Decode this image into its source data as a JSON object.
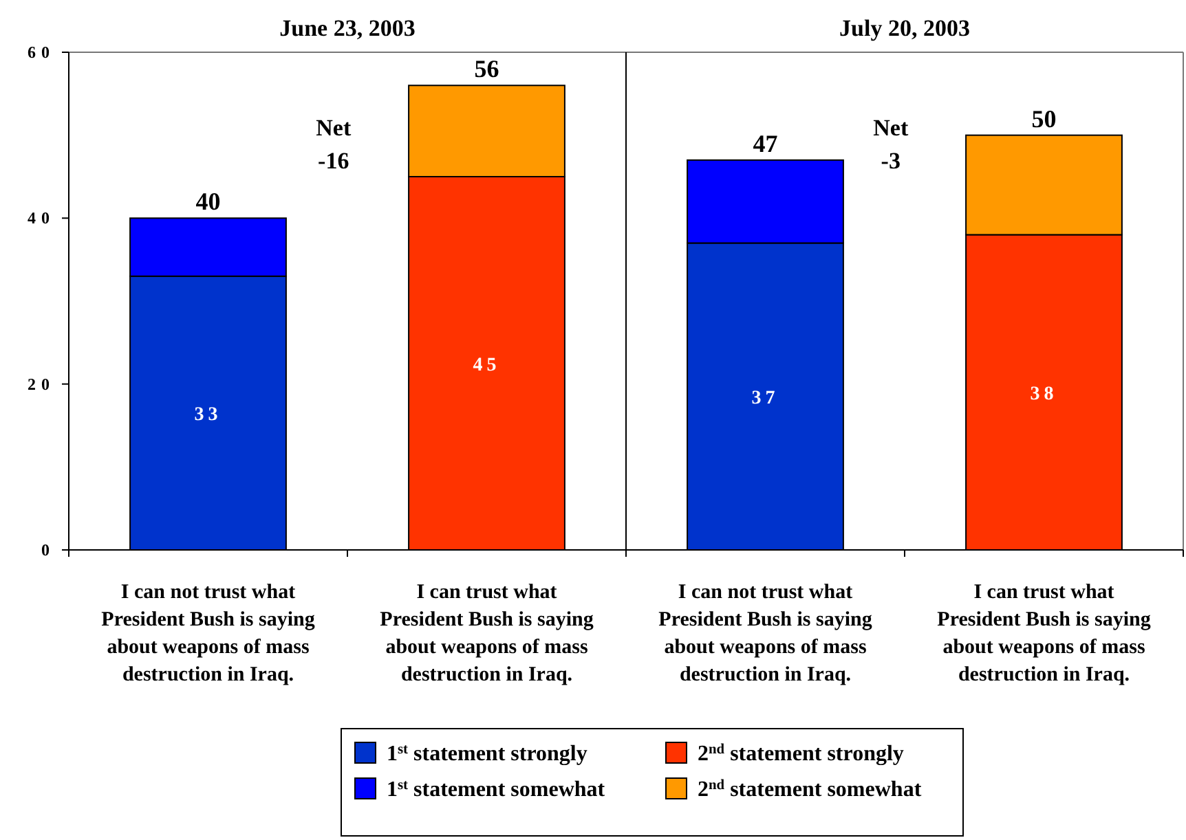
{
  "chart_data": [
    {
      "type": "bar",
      "stacked": true,
      "title": "June 23, 2003",
      "categories": [
        "I can not trust what President Bush is saying about weapons of mass destruction in Iraq.",
        "I can trust what President Bush is saying about weapons of mass destruction in Iraq."
      ],
      "series": [
        {
          "name": "1$^{st}$ statement strongly",
          "color": "#0033cc",
          "values": [
            33,
            null
          ],
          "value_labels": [
            "33",
            null
          ]
        },
        {
          "name": "1$^{st}$ statement somewhat",
          "color": "#0000ff",
          "values": [
            7,
            null
          ]
        },
        {
          "name": "2$^{nd}$ statement strongly",
          "color": "#ff3300",
          "values": [
            null,
            45
          ],
          "value_labels": [
            null,
            "45"
          ]
        },
        {
          "name": "2$^{nd}$ statement somewhat",
          "color": "#ff9900",
          "values": [
            null,
            11
          ]
        }
      ],
      "totals": [
        "40",
        "56"
      ],
      "annotations": [
        "Net -16"
      ],
      "ylim": [
        0,
        60
      ],
      "yticks": [
        0,
        20,
        40,
        60
      ],
      "grid": false,
      "legend": "bottom"
    },
    {
      "type": "bar",
      "stacked": true,
      "title": "July 20, 2003",
      "categories": [
        "I can not trust what President Bush is saying about weapons of mass destruction in Iraq.",
        "I can trust what President Bush is saying about weapons of mass destruction in Iraq."
      ],
      "series": [
        {
          "color": "#0033cc",
          "values": [
            37,
            null
          ],
          "value_labels": [
            "37",
            null
          ]
        },
        {
          "color": "#0000ff",
          "values": [
            10,
            null
          ]
        },
        {
          "color": "#ff3300",
          "values": [
            null,
            38
          ],
          "value_labels": [
            null,
            "38"
          ]
        },
        {
          "color": "#ff9900",
          "values": [
            null,
            12
          ]
        }
      ],
      "totals": [
        "47",
        "50"
      ],
      "annotations": [
        "Net -3"
      ],
      "ylim": [
        0,
        60
      ],
      "tick_labels": "x",
      "grid": false
    }
  ]
}
